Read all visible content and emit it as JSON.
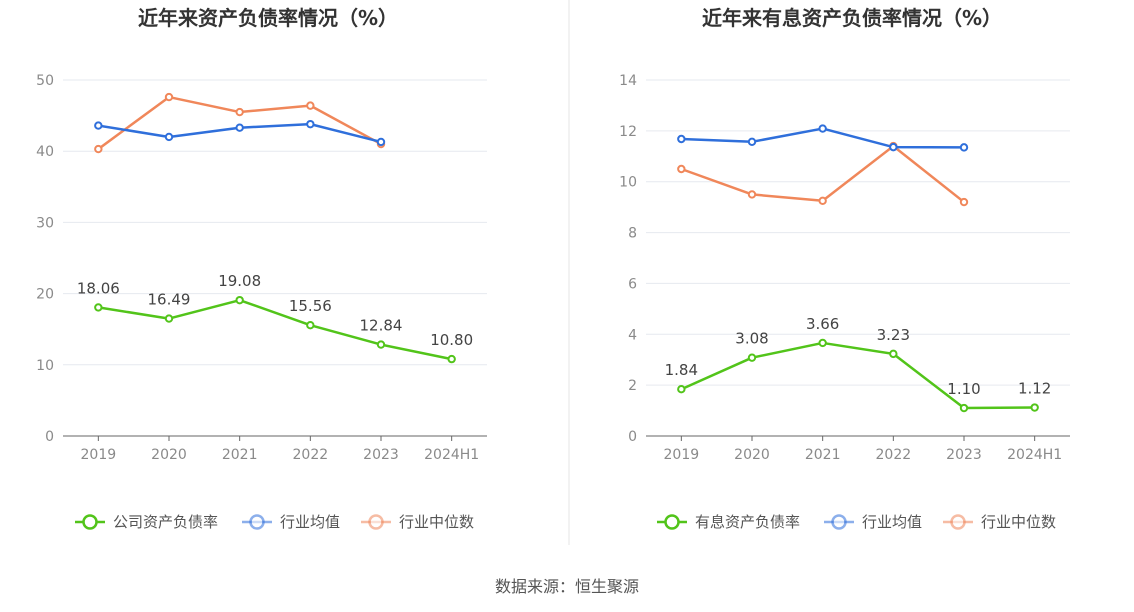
{
  "source_prefix": "数据来源：",
  "source_name": "恒生聚源",
  "chart_data": [
    {
      "type": "line",
      "title": "近年来资产负债率情况（%）",
      "categories": [
        "2019",
        "2020",
        "2021",
        "2022",
        "2023",
        "2024H1"
      ],
      "ylim": [
        0,
        50
      ],
      "yticks": [
        0,
        10,
        20,
        30,
        40,
        50
      ],
      "grid": true,
      "legend_position": "bottom",
      "series": [
        {
          "name": "公司资产负债率",
          "color": "#52c41a",
          "values": [
            18.06,
            16.49,
            19.08,
            15.56,
            12.84,
            10.8
          ],
          "labels": [
            "18.06",
            "16.49",
            "19.08",
            "15.56",
            "12.84",
            "10.80"
          ],
          "show_labels": true
        },
        {
          "name": "行业均值",
          "color": "#2f6fdb",
          "values": [
            43.6,
            42.0,
            43.3,
            43.8,
            41.3,
            null
          ],
          "show_labels": false
        },
        {
          "name": "行业中位数",
          "color": "#f0875a",
          "values": [
            40.3,
            47.6,
            45.5,
            46.4,
            41.0,
            null
          ],
          "show_labels": false
        }
      ]
    },
    {
      "type": "line",
      "title": "近年来有息资产负债率情况（%）",
      "categories": [
        "2019",
        "2020",
        "2021",
        "2022",
        "2023",
        "2024H1"
      ],
      "ylim": [
        0,
        14
      ],
      "yticks": [
        0,
        2,
        4,
        6,
        8,
        10,
        12,
        14
      ],
      "grid": true,
      "legend_position": "bottom",
      "series": [
        {
          "name": "有息资产负债率",
          "color": "#52c41a",
          "values": [
            1.84,
            3.08,
            3.66,
            3.23,
            1.1,
            1.12
          ],
          "labels": [
            "1.84",
            "3.08",
            "3.66",
            "3.23",
            "1.10",
            "1.12"
          ],
          "show_labels": true
        },
        {
          "name": "行业均值",
          "color": "#2f6fdb",
          "values": [
            11.68,
            11.57,
            12.09,
            11.36,
            11.35,
            null
          ],
          "show_labels": false
        },
        {
          "name": "行业中位数",
          "color": "#f0875a",
          "values": [
            10.5,
            9.5,
            9.25,
            11.4,
            9.2,
            null
          ],
          "show_labels": false
        }
      ]
    }
  ]
}
